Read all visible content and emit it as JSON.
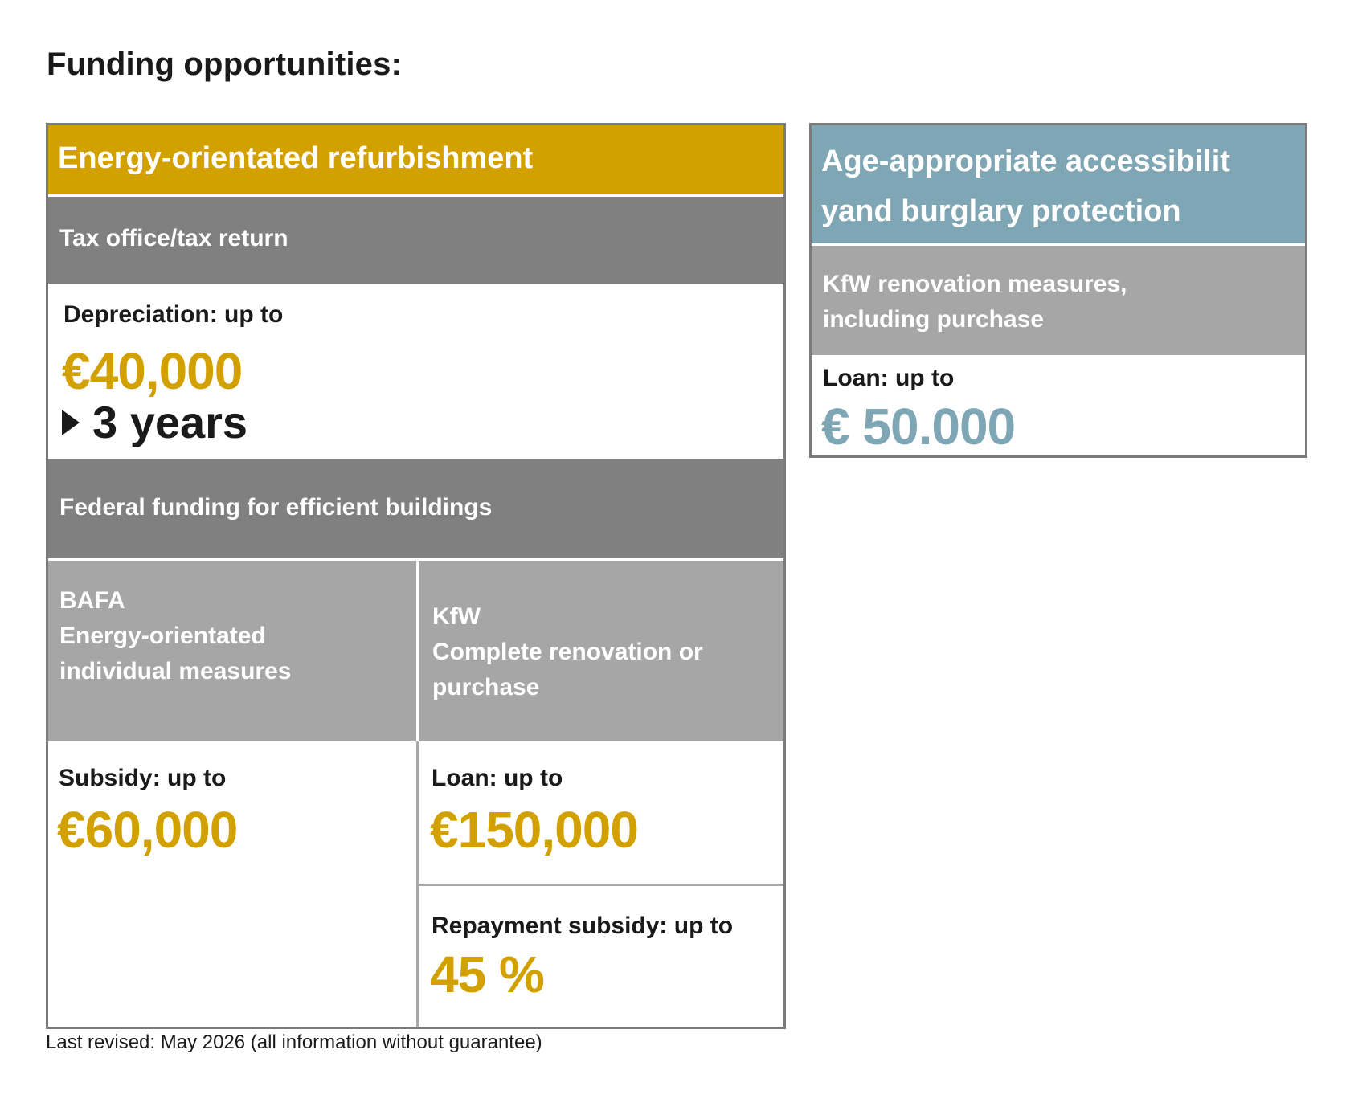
{
  "title": "Funding opportunities:",
  "colors": {
    "accent_gold": "#d2a100",
    "accent_blue": "#7fa6b5",
    "band_dark": "#808080",
    "band_light": "#a6a6a6",
    "border": "#7b7b7b"
  },
  "energy": {
    "header": "Energy-orientated refurbishment",
    "tax": {
      "band": "Tax office/tax return",
      "label": "Depreciation: up to",
      "value": "€40,000",
      "period": "3 years",
      "period_icon": "triangle-right-icon"
    },
    "federal": {
      "band": "Federal funding for efficient buildings",
      "bafa": {
        "line1": "BAFA",
        "line2": "Energy-orientated",
        "line3": "individual measures",
        "label": "Subsidy: up to",
        "value": "€60,000"
      },
      "kfw": {
        "line1": "KfW",
        "line2": "Complete renovation or",
        "line3": "purchase",
        "loan_label": "Loan: up to",
        "loan_value": "€150,000",
        "repay_label": "Repayment subsidy: up to",
        "repay_value": "45 %"
      }
    }
  },
  "age": {
    "header_line1": "Age-appropriate accessibilit",
    "header_line2": "yand burglary protection",
    "band_line1": "KfW renovation measures,",
    "band_line2": "including purchase",
    "label": "Loan: up to",
    "value": "€ 50.000"
  },
  "footnote": "Last revised: May 2026 (all information without guarantee)"
}
